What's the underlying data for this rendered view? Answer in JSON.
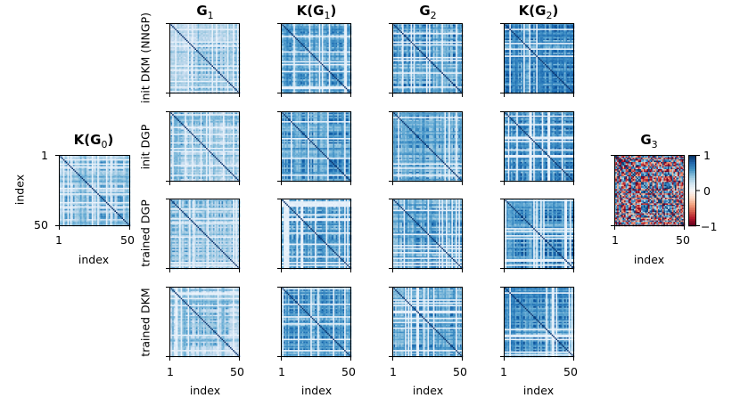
{
  "chart_data": {
    "type": "heatmap",
    "matrix_size": 50,
    "colormaps": {
      "blues": [
        "#f7fbff",
        "#deebf7",
        "#c6dbef",
        "#9ecae1",
        "#6baed6",
        "#4292c6",
        "#2171b5",
        "#08519c",
        "#08306b"
      ],
      "diverging": [
        "#67001f",
        "#b2182b",
        "#d6604d",
        "#f4a582",
        "#fddbc7",
        "#f7f7f7",
        "#d1e5f0",
        "#92c5de",
        "#4393c3",
        "#2166ac",
        "#053061"
      ]
    },
    "left_panel": {
      "title_main": "K(G",
      "title_sub": "0",
      "title_end": ")",
      "ylabel": "index",
      "xlabel": "index",
      "ytick_top": "1",
      "ytick_bottom": "50",
      "xtick_left": "1",
      "xtick_right": "50",
      "mean_intensity": 0.42
    },
    "grid": {
      "columns": [
        {
          "title_main": "G",
          "title_sub": "1",
          "title_end": "",
          "xtick_left": "1",
          "xtick_right": "50",
          "xlabel": "index"
        },
        {
          "title_main": "K(G",
          "title_sub": "1",
          "title_end": ")",
          "xtick_left": "1",
          "xtick_right": "50",
          "xlabel": "index"
        },
        {
          "title_main": "G",
          "title_sub": "2",
          "title_end": "",
          "xtick_left": "1",
          "xtick_right": "50",
          "xlabel": "index"
        },
        {
          "title_main": "K(G",
          "title_sub": "2",
          "title_end": ")",
          "xtick_left": "1",
          "xtick_right": "50",
          "xlabel": "index"
        }
      ],
      "rows": [
        {
          "label": "init DKM (NNGP)"
        },
        {
          "label": "init DGP"
        },
        {
          "label": "trained DGP"
        },
        {
          "label": "trained DKM"
        }
      ],
      "mean_intensity_by_column": [
        0.38,
        0.55,
        0.52,
        0.6
      ]
    },
    "right_panel": {
      "title_main": "G",
      "title_sub": "3",
      "xlabel": "index",
      "xtick_left": "1",
      "xtick_right": "50",
      "colorbar_ticks": [
        "1",
        "0",
        "−1"
      ],
      "colorbar_range": [
        -1,
        1
      ]
    }
  }
}
